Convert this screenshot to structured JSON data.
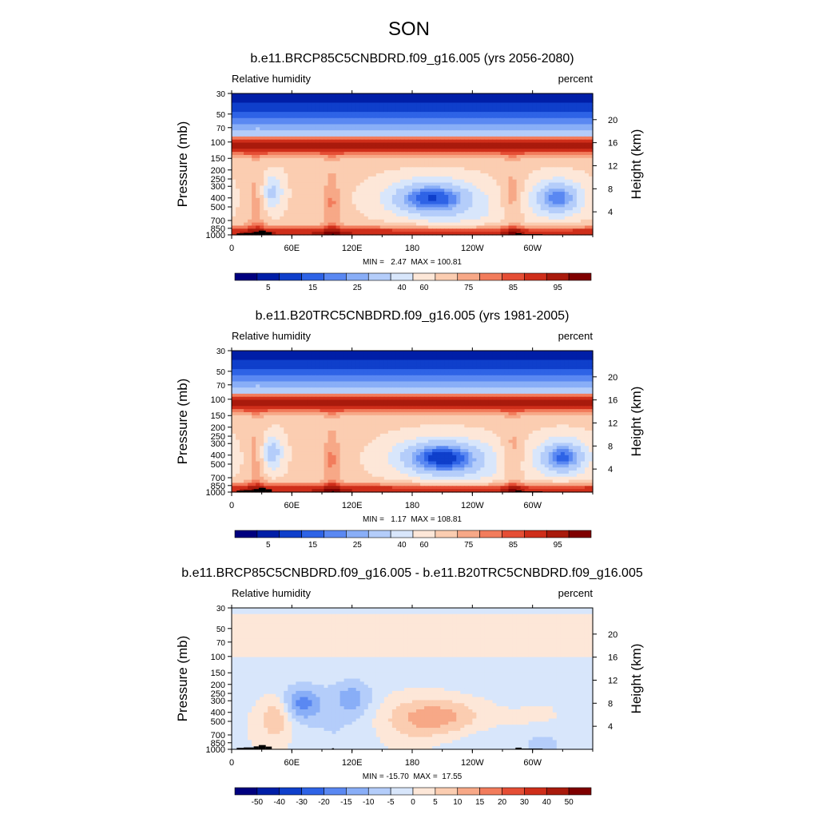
{
  "figure": {
    "title": "SON"
  },
  "chart_data": [
    {
      "type": "heatmap",
      "title": "b.e11.BRCP85C5CNBDRD.f09_g16.005 (yrs 2056-2080)",
      "left_label": "Relative humidity",
      "right_label": "percent",
      "ylabel": "Pressure (mb)",
      "y2label": "Height (km)",
      "x_tick_labels": [
        "0",
        "60E",
        "120E",
        "180",
        "120W",
        "60W"
      ],
      "x_tick_lon": [
        0,
        60,
        120,
        180,
        240,
        300
      ],
      "y_tick_labels": [
        "30",
        "50",
        "70",
        "100",
        "150",
        "200",
        "250",
        "300",
        "400",
        "500",
        "700",
        "850",
        "1000"
      ],
      "y_tick_values": [
        30,
        50,
        70,
        100,
        150,
        200,
        250,
        300,
        400,
        500,
        700,
        850,
        1000
      ],
      "height_tick_labels": [
        "20",
        "16",
        "12",
        "8",
        "4"
      ],
      "height_tick_values": [
        20,
        16,
        12,
        8,
        4
      ],
      "ylim": [
        1000,
        30
      ],
      "xlim": [
        0,
        360
      ],
      "stats": "MIN =   2.47  MAX = 100.81",
      "field": "abs",
      "colorbar_labels": [
        "5",
        "15",
        "25",
        "40",
        "60",
        "75",
        "85",
        "95"
      ],
      "colorbar_colors": [
        "#00007f",
        "#001ea7",
        "#0f3fcb",
        "#2e63e6",
        "#5a88f2",
        "#89aef7",
        "#b4cdfa",
        "#d8e6fb",
        "#fde7d8",
        "#fbcdb1",
        "#f7a887",
        "#f27c5c",
        "#e54e35",
        "#cf2e1a",
        "#a91a0c",
        "#7f0000"
      ],
      "features": {
        "dry_cores": [
          {
            "lon": 200,
            "p": 400,
            "min_rh": 15,
            "name": "central Pacific dry core"
          },
          {
            "lon": 325,
            "p": 400,
            "min_rh": 20,
            "name": "south Atlantic dry core"
          },
          {
            "lon": 40,
            "p": 350,
            "min_rh": 35,
            "name": "Africa dry core"
          }
        ],
        "moist_columns": [
          {
            "lon": 25,
            "name": "Africa"
          },
          {
            "lon": 100,
            "name": "Maritime continent"
          },
          {
            "lon": 280,
            "name": "South America"
          }
        ]
      }
    },
    {
      "type": "heatmap",
      "title": "b.e11.B20TRC5CNBDRD.f09_g16.005 (yrs 1981-2005)",
      "left_label": "Relative humidity",
      "right_label": "percent",
      "ylabel": "Pressure (mb)",
      "y2label": "Height (km)",
      "x_tick_labels": [
        "0",
        "60E",
        "120E",
        "180",
        "120W",
        "60W"
      ],
      "x_tick_lon": [
        0,
        60,
        120,
        180,
        240,
        300
      ],
      "y_tick_labels": [
        "30",
        "50",
        "70",
        "100",
        "150",
        "200",
        "250",
        "300",
        "400",
        "500",
        "700",
        "850",
        "1000"
      ],
      "y_tick_values": [
        30,
        50,
        70,
        100,
        150,
        200,
        250,
        300,
        400,
        500,
        700,
        850,
        1000
      ],
      "height_tick_labels": [
        "20",
        "16",
        "12",
        "8",
        "4"
      ],
      "height_tick_values": [
        20,
        16,
        12,
        8,
        4
      ],
      "ylim": [
        1000,
        30
      ],
      "xlim": [
        0,
        360
      ],
      "stats": "MIN =   1.17  MAX = 108.81",
      "field": "abs",
      "colorbar_labels": [
        "5",
        "15",
        "25",
        "40",
        "60",
        "75",
        "85",
        "95"
      ],
      "colorbar_colors": [
        "#00007f",
        "#001ea7",
        "#0f3fcb",
        "#2e63e6",
        "#5a88f2",
        "#89aef7",
        "#b4cdfa",
        "#d8e6fb",
        "#fde7d8",
        "#fbcdb1",
        "#f7a887",
        "#f27c5c",
        "#e54e35",
        "#cf2e1a",
        "#a91a0c",
        "#7f0000"
      ],
      "features": {
        "dry_cores": [
          {
            "lon": 210,
            "p": 420,
            "min_rh": 12,
            "name": "central Pacific dry core"
          },
          {
            "lon": 330,
            "p": 420,
            "min_rh": 18,
            "name": "south Atlantic dry core"
          },
          {
            "lon": 40,
            "p": 380,
            "min_rh": 32,
            "name": "Africa dry core"
          }
        ],
        "moist_columns": [
          {
            "lon": 25,
            "name": "Africa"
          },
          {
            "lon": 100,
            "name": "Maritime continent"
          },
          {
            "lon": 280,
            "name": "South America"
          }
        ]
      }
    },
    {
      "type": "heatmap",
      "title": "b.e11.BRCP85C5CNBDRD.f09_g16.005 - b.e11.B20TRC5CNBDRD.f09_g16.005",
      "left_label": "Relative humidity",
      "right_label": "percent",
      "ylabel": "Pressure (mb)",
      "y2label": "Height (km)",
      "x_tick_labels": [
        "0",
        "60E",
        "120E",
        "180",
        "120W",
        "60W"
      ],
      "x_tick_lon": [
        0,
        60,
        120,
        180,
        240,
        300
      ],
      "y_tick_labels": [
        "30",
        "50",
        "70",
        "100",
        "150",
        "200",
        "250",
        "300",
        "400",
        "500",
        "700",
        "850",
        "1000"
      ],
      "y_tick_values": [
        30,
        50,
        70,
        100,
        150,
        200,
        250,
        300,
        400,
        500,
        700,
        850,
        1000
      ],
      "height_tick_labels": [
        "20",
        "16",
        "12",
        "8",
        "4"
      ],
      "height_tick_values": [
        20,
        16,
        12,
        8,
        4
      ],
      "ylim": [
        1000,
        30
      ],
      "xlim": [
        0,
        360
      ],
      "stats": "MIN = -15.70  MAX =  17.55",
      "field": "diff",
      "colorbar_labels": [
        "-50",
        "-40",
        "-30",
        "-20",
        "-15",
        "-10",
        "-5",
        "0",
        "5",
        "10",
        "15",
        "20",
        "30",
        "40",
        "50"
      ],
      "colorbar_colors": [
        "#00007f",
        "#001ea7",
        "#0f3fcb",
        "#2e63e6",
        "#5a88f2",
        "#89aef7",
        "#b4cdfa",
        "#d8e6fb",
        "#fde7d8",
        "#fbcdb1",
        "#f7a887",
        "#f27c5c",
        "#e54e35",
        "#cf2e1a",
        "#a91a0c",
        "#7f0000"
      ],
      "features": {
        "positive_regions": [
          {
            "lon": 210,
            "p": 450,
            "max": 15,
            "name": "central Pacific increase"
          },
          {
            "lon": 45,
            "p": 450,
            "max": 10,
            "name": "Africa mid-level increase"
          }
        ],
        "negative_regions": [
          {
            "lon": 70,
            "p": 320,
            "min": -15,
            "name": "Indian Ocean decrease"
          },
          {
            "lon": 120,
            "p": 280,
            "min": -10,
            "name": "West Pacific decrease"
          },
          {
            "lon": 310,
            "p": 900,
            "min": -8,
            "name": "Atlantic low-level decrease"
          }
        ]
      }
    }
  ]
}
